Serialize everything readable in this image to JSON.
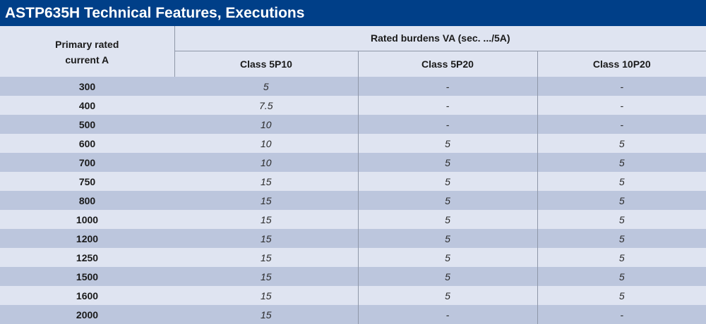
{
  "title": "ASTP635H Technical Features, Executions",
  "header": {
    "primary_line1": "Primary rated",
    "primary_line2": "current  A",
    "burdens": "Rated burdens VA  (sec. .../5A)",
    "class1": "Class 5P10",
    "class2": "Class 5P20",
    "class3": "Class 10P20"
  },
  "rows": [
    {
      "current": "300",
      "c1": "5",
      "c2": "-",
      "c3": "-"
    },
    {
      "current": "400",
      "c1": "7.5",
      "c2": "-",
      "c3": "-"
    },
    {
      "current": "500",
      "c1": "10",
      "c2": "-",
      "c3": "-"
    },
    {
      "current": "600",
      "c1": "10",
      "c2": "5",
      "c3": "5"
    },
    {
      "current": "700",
      "c1": "10",
      "c2": "5",
      "c3": "5"
    },
    {
      "current": "750",
      "c1": "15",
      "c2": "5",
      "c3": "5"
    },
    {
      "current": "800",
      "c1": "15",
      "c2": "5",
      "c3": "5"
    },
    {
      "current": "1000",
      "c1": "15",
      "c2": "5",
      "c3": "5"
    },
    {
      "current": "1200",
      "c1": "15",
      "c2": "5",
      "c3": "5"
    },
    {
      "current": "1250",
      "c1": "15",
      "c2": "5",
      "c3": "5"
    },
    {
      "current": "1500",
      "c1": "15",
      "c2": "5",
      "c3": "5"
    },
    {
      "current": "1600",
      "c1": "15",
      "c2": "5",
      "c3": "5"
    },
    {
      "current": "2000",
      "c1": "15",
      "c2": "-",
      "c3": "-"
    }
  ]
}
